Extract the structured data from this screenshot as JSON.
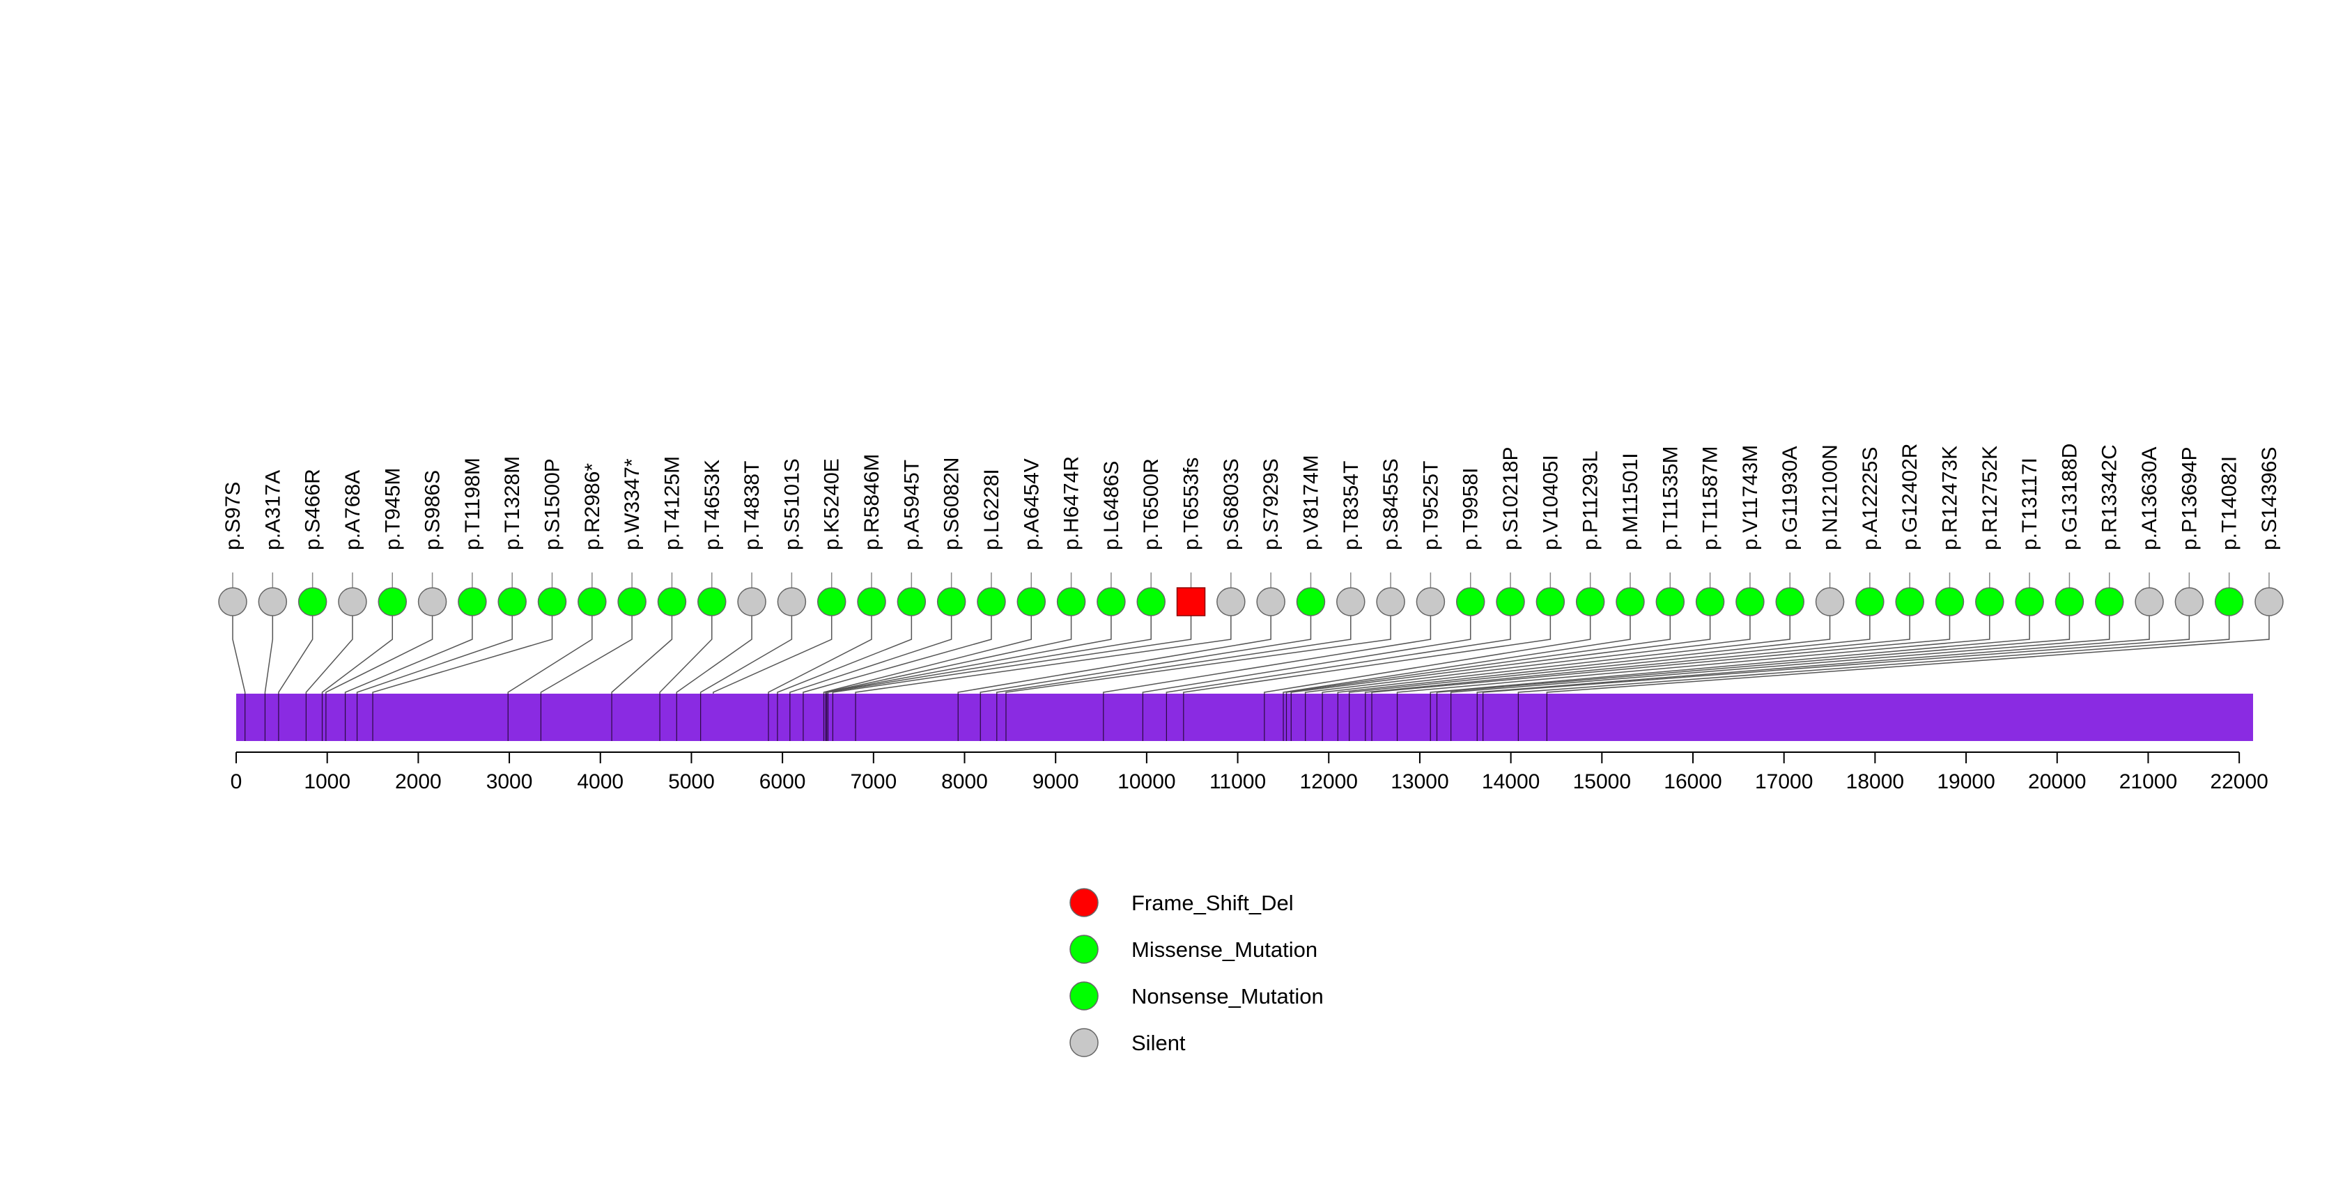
{
  "colors": {
    "protein_bar": "#8a2be2",
    "connector": "#555555",
    "stem": "#888888",
    "outline": "#666666"
  },
  "chart_data": {
    "type": "lollipop",
    "title": "",
    "xlabel": "",
    "ylabel": "",
    "protein_length": 22152,
    "xlim": [
      0,
      22152
    ],
    "x_ticks": [
      0,
      1000,
      2000,
      3000,
      4000,
      5000,
      6000,
      7000,
      8000,
      9000,
      10000,
      11000,
      12000,
      13000,
      14000,
      15000,
      16000,
      17000,
      18000,
      19000,
      20000,
      21000,
      22000
    ],
    "domain_boundaries": [
      97,
      317,
      466,
      768,
      945,
      986,
      1198,
      1328,
      1500,
      2986,
      3347,
      4125,
      4653,
      4838,
      5101,
      5846,
      5945,
      6082,
      6228,
      6454,
      6474,
      6486,
      6500,
      6553,
      6803,
      7929,
      8174,
      8354,
      8455,
      9525,
      9958,
      10218,
      10405,
      11293,
      11501,
      11535,
      11587,
      11743,
      11930,
      12100,
      12225,
      12402,
      12473,
      12752,
      13117,
      13188,
      13342,
      13630,
      13694,
      14082,
      14396
    ],
    "legend": [
      {
        "label": "Frame_Shift_Del",
        "color": "#ff0000"
      },
      {
        "label": "Missense_Mutation",
        "color": "#00ff00"
      },
      {
        "label": "Nonsense_Mutation",
        "color": "#00ff00"
      },
      {
        "label": "Silent",
        "color": "#c8c8c8"
      }
    ],
    "mutations": [
      {
        "label": "p.S97S",
        "position": 97,
        "type": "Silent",
        "color": "#c8c8c8"
      },
      {
        "label": "p.A317A",
        "position": 317,
        "type": "Silent",
        "color": "#c8c8c8"
      },
      {
        "label": "p.S466R",
        "position": 466,
        "type": "Missense_Mutation",
        "color": "#00ff00"
      },
      {
        "label": "p.A768A",
        "position": 768,
        "type": "Silent",
        "color": "#c8c8c8"
      },
      {
        "label": "p.T945M",
        "position": 945,
        "type": "Missense_Mutation",
        "color": "#00ff00"
      },
      {
        "label": "p.S986S",
        "position": 986,
        "type": "Silent",
        "color": "#c8c8c8"
      },
      {
        "label": "p.T1198M",
        "position": 1198,
        "type": "Missense_Mutation",
        "color": "#00ff00"
      },
      {
        "label": "p.T1328M",
        "position": 1328,
        "type": "Missense_Mutation",
        "color": "#00ff00"
      },
      {
        "label": "p.S1500P",
        "position": 1500,
        "type": "Missense_Mutation",
        "color": "#00ff00"
      },
      {
        "label": "p.R2986*",
        "position": 2986,
        "type": "Nonsense_Mutation",
        "color": "#00ff00"
      },
      {
        "label": "p.W3347*",
        "position": 3347,
        "type": "Nonsense_Mutation",
        "color": "#00ff00"
      },
      {
        "label": "p.T4125M",
        "position": 4125,
        "type": "Missense_Mutation",
        "color": "#00ff00"
      },
      {
        "label": "p.T4653K",
        "position": 4653,
        "type": "Missense_Mutation",
        "color": "#00ff00"
      },
      {
        "label": "p.T4838T",
        "position": 4838,
        "type": "Silent",
        "color": "#c8c8c8"
      },
      {
        "label": "p.S5101S",
        "position": 5101,
        "type": "Silent",
        "color": "#c8c8c8"
      },
      {
        "label": "p.K5240E",
        "position": 5240,
        "type": "Missense_Mutation",
        "color": "#00ff00"
      },
      {
        "label": "p.R5846M",
        "position": 5846,
        "type": "Missense_Mutation",
        "color": "#00ff00"
      },
      {
        "label": "p.A5945T",
        "position": 5945,
        "type": "Missense_Mutation",
        "color": "#00ff00"
      },
      {
        "label": "p.S6082N",
        "position": 6082,
        "type": "Missense_Mutation",
        "color": "#00ff00"
      },
      {
        "label": "p.L6228I",
        "position": 6228,
        "type": "Missense_Mutation",
        "color": "#00ff00"
      },
      {
        "label": "p.A6454V",
        "position": 6454,
        "type": "Missense_Mutation",
        "color": "#00ff00"
      },
      {
        "label": "p.H6474R",
        "position": 6474,
        "type": "Missense_Mutation",
        "color": "#00ff00"
      },
      {
        "label": "p.L6486S",
        "position": 6486,
        "type": "Missense_Mutation",
        "color": "#00ff00"
      },
      {
        "label": "p.T6500R",
        "position": 6500,
        "type": "Missense_Mutation",
        "color": "#00ff00"
      },
      {
        "label": "p.T6553fs",
        "position": 6553,
        "type": "Frame_Shift_Del",
        "color": "#ff0000",
        "shape": "square"
      },
      {
        "label": "p.S6803S",
        "position": 6803,
        "type": "Silent",
        "color": "#c8c8c8"
      },
      {
        "label": "p.S7929S",
        "position": 7929,
        "type": "Silent",
        "color": "#c8c8c8"
      },
      {
        "label": "p.V8174M",
        "position": 8174,
        "type": "Missense_Mutation",
        "color": "#00ff00"
      },
      {
        "label": "p.T8354T",
        "position": 8354,
        "type": "Silent",
        "color": "#c8c8c8"
      },
      {
        "label": "p.S8455S",
        "position": 8455,
        "type": "Silent",
        "color": "#c8c8c8"
      },
      {
        "label": "p.T9525T",
        "position": 9525,
        "type": "Silent",
        "color": "#c8c8c8"
      },
      {
        "label": "p.T9958I",
        "position": 9958,
        "type": "Missense_Mutation",
        "color": "#00ff00"
      },
      {
        "label": "p.S10218P",
        "position": 10218,
        "type": "Missense_Mutation",
        "color": "#00ff00"
      },
      {
        "label": "p.V10405I",
        "position": 10405,
        "type": "Missense_Mutation",
        "color": "#00ff00"
      },
      {
        "label": "p.P11293L",
        "position": 11293,
        "type": "Missense_Mutation",
        "color": "#00ff00"
      },
      {
        "label": "p.M11501I",
        "position": 11501,
        "type": "Missense_Mutation",
        "color": "#00ff00"
      },
      {
        "label": "p.T11535M",
        "position": 11535,
        "type": "Missense_Mutation",
        "color": "#00ff00"
      },
      {
        "label": "p.T11587M",
        "position": 11587,
        "type": "Missense_Mutation",
        "color": "#00ff00"
      },
      {
        "label": "p.V11743M",
        "position": 11743,
        "type": "Missense_Mutation",
        "color": "#00ff00"
      },
      {
        "label": "p.G11930A",
        "position": 11930,
        "type": "Missense_Mutation",
        "color": "#00ff00"
      },
      {
        "label": "p.N12100N",
        "position": 12100,
        "type": "Silent",
        "color": "#c8c8c8"
      },
      {
        "label": "p.A12225S",
        "position": 12225,
        "type": "Missense_Mutation",
        "color": "#00ff00"
      },
      {
        "label": "p.G12402R",
        "position": 12402,
        "type": "Missense_Mutation",
        "color": "#00ff00"
      },
      {
        "label": "p.R12473K",
        "position": 12473,
        "type": "Missense_Mutation",
        "color": "#00ff00"
      },
      {
        "label": "p.R12752K",
        "position": 12752,
        "type": "Missense_Mutation",
        "color": "#00ff00"
      },
      {
        "label": "p.T13117I",
        "position": 13117,
        "type": "Missense_Mutation",
        "color": "#00ff00"
      },
      {
        "label": "p.G13188D",
        "position": 13188,
        "type": "Missense_Mutation",
        "color": "#00ff00"
      },
      {
        "label": "p.R13342C",
        "position": 13342,
        "type": "Missense_Mutation",
        "color": "#00ff00"
      },
      {
        "label": "p.A13630A",
        "position": 13630,
        "type": "Silent",
        "color": "#c8c8c8"
      },
      {
        "label": "p.P13694P",
        "position": 13694,
        "type": "Silent",
        "color": "#c8c8c8"
      },
      {
        "label": "p.T14082I",
        "position": 14082,
        "type": "Missense_Mutation",
        "color": "#00ff00"
      },
      {
        "label": "p.S14396S",
        "position": 14396,
        "type": "Silent",
        "color": "#c8c8c8"
      }
    ]
  }
}
